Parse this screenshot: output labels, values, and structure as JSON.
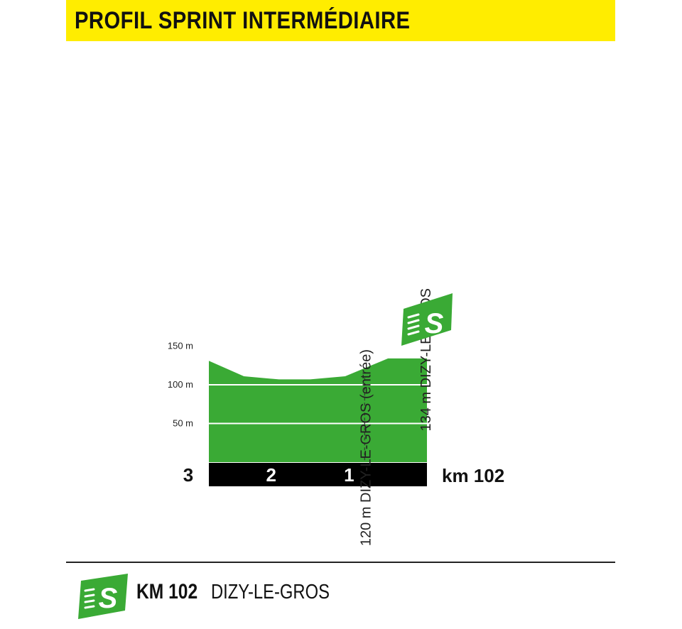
{
  "title": "PROFIL SPRINT INTERMÉDIAIRE",
  "colors": {
    "title_bg": "#ffed00",
    "profile_green": "#3aaa35",
    "distance_bar": "#000000",
    "sprint_icon_green": "#3aaa35"
  },
  "chart_data": {
    "type": "area",
    "x_unit": "km to sprint",
    "y_unit": "m",
    "xlim": [
      2.8,
      0
    ],
    "ylim": [
      0,
      160
    ],
    "y_ticks": [
      {
        "value": 50,
        "label": "50 m"
      },
      {
        "value": 100,
        "label": "100 m"
      },
      {
        "value": 150,
        "label": "150 m"
      }
    ],
    "x_ticks": [
      {
        "value": 3,
        "label": "3"
      },
      {
        "value": 2,
        "label": "2"
      },
      {
        "value": 1,
        "label": "1"
      }
    ],
    "end_label": "km 102",
    "profile": [
      {
        "x": 2.8,
        "y": 131
      },
      {
        "x": 2.35,
        "y": 111
      },
      {
        "x": 1.9,
        "y": 107
      },
      {
        "x": 1.5,
        "y": 107
      },
      {
        "x": 1.05,
        "y": 111
      },
      {
        "x": 0.5,
        "y": 134
      },
      {
        "x": 0.0,
        "y": 134
      }
    ],
    "annotations": [
      {
        "x": 0.8,
        "altitude": 120,
        "text": "120 m DIZY-LE-GROS (entrée)",
        "dashed_line": true
      },
      {
        "x": 0.0,
        "altitude": 134,
        "text": "134 m DIZY-LE-GROS",
        "sprint_marker": true
      }
    ]
  },
  "footer": {
    "km_label": "KM 102",
    "place": "DIZY-LE-GROS",
    "icon": "sprint-icon"
  }
}
